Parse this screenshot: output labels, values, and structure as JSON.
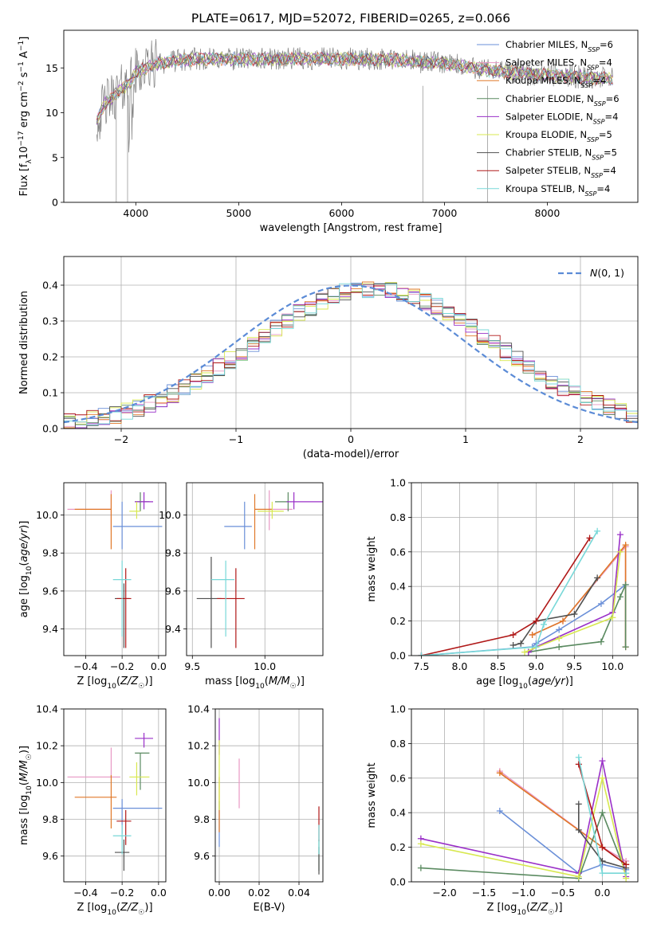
{
  "figure_title": "PLATE=0617, MJD=52072, FIBERID=0265, z=0.066",
  "colors": {
    "series": [
      "#6a8fd8",
      "#e898c4",
      "#e07828",
      "#5a8a60",
      "#9a30c8",
      "#d8e850",
      "#505050",
      "#b01818",
      "#78d8d8"
    ],
    "normal_curve": "#5b8bd6",
    "grid": "#b0b0b0",
    "spectrum": "#808080"
  },
  "chart_data": [
    {
      "id": "spectrum",
      "type": "line",
      "xlabel": "wavelength [Angstrom, rest frame]",
      "ylabel": "Flux [fλ10⁻¹⁷ erg cm⁻² s⁻¹ A⁻¹]",
      "xlim": [
        3300,
        8880
      ],
      "ylim": [
        0,
        19.2
      ],
      "xticks": [
        4000,
        5000,
        6000,
        7000,
        8000
      ],
      "yticks": [
        0,
        5,
        10,
        15
      ],
      "grid": false,
      "legend_position": "top-right",
      "legend": [
        {
          "name": "Chabrier MILES, N_SSP=6"
        },
        {
          "name": "Salpeter MILES, N_SSP=4"
        },
        {
          "name": "Kroupa MILES, N_SSP=4"
        },
        {
          "name": "Chabrier ELODIE, N_SSP=6"
        },
        {
          "name": "Salpeter ELODIE, N_SSP=4"
        },
        {
          "name": "Kroupa ELODIE, N_SSP=5"
        },
        {
          "name": "Chabrier STELIB, N_SSP=5"
        },
        {
          "name": "Salpeter STELIB, N_SSP=4"
        },
        {
          "name": "Kroupa STELIB, N_SSP=4"
        }
      ],
      "continuum": {
        "x": [
          3620,
          3700,
          3800,
          3900,
          3950,
          4000,
          4100,
          4200,
          4400,
          4600,
          5000,
          5500,
          6000,
          6500,
          7000,
          7300,
          7500,
          8000,
          8300,
          8600
        ],
        "y": [
          9,
          11,
          12,
          13,
          13.5,
          14.5,
          15,
          15.5,
          15.8,
          16,
          16,
          16,
          16,
          15.9,
          15.5,
          15,
          14.6,
          14.2,
          14,
          13.8
        ]
      },
      "data_range": [
        3620,
        8640
      ]
    },
    {
      "id": "residual-histogram",
      "type": "step",
      "xlabel": "(data-model)/error",
      "ylabel": "Normed distribution",
      "xlim": [
        -2.5,
        2.5
      ],
      "ylim": [
        0,
        0.48
      ],
      "xticks": [
        -2,
        -1,
        0,
        1,
        2
      ],
      "yticks": [
        0,
        0.1,
        0.2,
        0.3,
        0.4
      ],
      "grid": true,
      "legend": [
        {
          "name": "N(0,1)"
        }
      ],
      "bin_width": 0.1,
      "bin_start": -2.5
    },
    {
      "id": "Z-vs-age",
      "type": "errorbar",
      "xlabel": "Z [log10(Z/Z☉)]",
      "ylabel": "age  [log10(age/yr)]",
      "xlim": [
        -0.52,
        0.04
      ],
      "ylim": [
        9.26,
        10.17
      ],
      "xticks": [
        -0.4,
        -0.2,
        0.0
      ],
      "yticks": [
        9.4,
        9.6,
        9.8,
        10.0
      ],
      "grid": true,
      "points": [
        {
          "x": -0.2,
          "xerr": [
            0.05,
            0.22
          ],
          "y": 9.94,
          "yerr": [
            0.12,
            0.13
          ]
        },
        {
          "x": -0.26,
          "xerr": [
            0.24,
            0.0
          ],
          "y": 10.03,
          "yerr": [
            0.11,
            0.1
          ]
        },
        {
          "x": -0.26,
          "xerr": [
            0.2,
            0.0
          ],
          "y": 10.03,
          "yerr": [
            0.21,
            0.08
          ]
        },
        {
          "x": -0.1,
          "xerr": [
            0.03,
            0.05
          ],
          "y": 10.07,
          "yerr": [
            0.05,
            0.05
          ]
        },
        {
          "x": -0.08,
          "xerr": [
            0.05,
            0.05
          ],
          "y": 10.07,
          "yerr": [
            0.04,
            0.05
          ]
        },
        {
          "x": -0.12,
          "xerr": [
            0.04,
            0.02
          ],
          "y": 10.02,
          "yerr": [
            0.04,
            0.05
          ]
        },
        {
          "x": -0.19,
          "xerr": [
            0.05,
            0.03
          ],
          "y": 9.56,
          "yerr": [
            0.26,
            0.08
          ]
        },
        {
          "x": -0.18,
          "xerr": [
            0.05,
            0.03
          ],
          "y": 9.56,
          "yerr": [
            0.26,
            0.16
          ]
        },
        {
          "x": -0.2,
          "xerr": [
            0.05,
            0.05
          ],
          "y": 9.66,
          "yerr": [
            0.3,
            0.1
          ]
        }
      ]
    },
    {
      "id": "mass-vs-age",
      "type": "errorbar",
      "xlabel": "mass [log10(M/M☉)]",
      "ylabel": "",
      "xlim": [
        9.46,
        10.4
      ],
      "ylim": [
        9.26,
        10.17
      ],
      "xticks": [
        9.5,
        10.0
      ],
      "yticks": [
        9.4,
        9.6,
        9.8,
        10.0
      ],
      "grid": true,
      "points": [
        {
          "x": 9.86,
          "xerr": [
            0.14,
            0.05
          ],
          "y": 9.94,
          "yerr": [
            0.12,
            0.13
          ]
        },
        {
          "x": 10.03,
          "xerr": [
            0.0,
            0.16
          ],
          "y": 10.03,
          "yerr": [
            0.11,
            0.1
          ]
        },
        {
          "x": 9.93,
          "xerr": [
            0.0,
            0.12
          ],
          "y": 10.03,
          "yerr": [
            0.21,
            0.08
          ]
        },
        {
          "x": 10.16,
          "xerr": [
            0.09,
            0.0
          ],
          "y": 10.07,
          "yerr": [
            0.05,
            0.05
          ]
        },
        {
          "x": 10.2,
          "xerr": [
            0.05,
            0.2
          ],
          "y": 10.07,
          "yerr": [
            0.04,
            0.05
          ]
        },
        {
          "x": 10.05,
          "xerr": [
            0.1,
            0.08
          ],
          "y": 10.02,
          "yerr": [
            0.04,
            0.05
          ]
        },
        {
          "x": 9.63,
          "xerr": [
            0.1,
            0.07
          ],
          "y": 9.56,
          "yerr": [
            0.26,
            0.22
          ]
        },
        {
          "x": 9.8,
          "xerr": [
            0.13,
            0.06
          ],
          "y": 9.56,
          "yerr": [
            0.26,
            0.16
          ]
        },
        {
          "x": 9.73,
          "xerr": [
            0.1,
            0.06
          ],
          "y": 9.66,
          "yerr": [
            0.3,
            0.1
          ]
        }
      ]
    },
    {
      "id": "age-vs-mass-weight",
      "type": "line",
      "xlabel": "age  [log10(age/yr)]",
      "ylabel": "mass weight",
      "xlim": [
        7.37,
        10.33
      ],
      "ylim": [
        0,
        1.0
      ],
      "xticks": [
        7.5,
        8.0,
        8.5,
        9.0,
        9.5,
        10.0
      ],
      "yticks": [
        0.0,
        0.2,
        0.4,
        0.6,
        0.8,
        1.0
      ],
      "grid": true,
      "series": [
        {
          "x": [
            7.5,
            8.95,
            9.0,
            9.3,
            9.85,
            10.17
          ],
          "y": [
            0.0,
            0.05,
            0.07,
            0.15,
            0.3,
            0.41
          ]
        },
        {
          "x": [
            8.95,
            9.35,
            10.17,
            10.17
          ],
          "y": [
            0.12,
            0.2,
            0.63,
            0.05
          ]
        },
        {
          "x": [
            8.95,
            9.35,
            10.17,
            10.17
          ],
          "y": [
            0.12,
            0.2,
            0.64,
            0.05
          ]
        },
        {
          "x": [
            8.9,
            9.3,
            9.85,
            10.1,
            10.17,
            10.17
          ],
          "y": [
            0.02,
            0.05,
            0.08,
            0.34,
            0.41,
            0.05
          ]
        },
        {
          "x": [
            8.9,
            9.0,
            10.0,
            10.1
          ],
          "y": [
            0.02,
            0.05,
            0.25,
            0.7
          ]
        },
        {
          "x": [
            8.85,
            9.3,
            10.0,
            10.1
          ],
          "y": [
            0.02,
            0.1,
            0.22,
            0.6
          ]
        },
        {
          "x": [
            8.7,
            8.8,
            9.0,
            9.5,
            9.8
          ],
          "y": [
            0.06,
            0.07,
            0.2,
            0.24,
            0.45
          ]
        },
        {
          "x": [
            7.5,
            8.7,
            9.0,
            9.7
          ],
          "y": [
            0.0,
            0.12,
            0.2,
            0.68
          ]
        },
        {
          "x": [
            7.5,
            9.0,
            9.1,
            9.8
          ],
          "y": [
            0.0,
            0.05,
            0.18,
            0.72
          ]
        }
      ]
    },
    {
      "id": "Z-vs-mass",
      "type": "errorbar",
      "xlabel": "Z [log10(Z/Z☉)]",
      "ylabel": "mass [log10(M/M☉)]",
      "xlim": [
        -0.52,
        0.04
      ],
      "ylim": [
        9.46,
        10.4
      ],
      "xticks": [
        -0.4,
        -0.2,
        0.0
      ],
      "yticks": [
        9.6,
        9.8,
        10.0,
        10.2,
        10.4
      ],
      "grid": true,
      "points": [
        {
          "x": -0.2,
          "xerr": [
            0.05,
            0.22
          ],
          "y": 9.86,
          "yerr": [
            0.14,
            0.05
          ]
        },
        {
          "x": -0.26,
          "xerr": [
            0.24,
            0.05
          ],
          "y": 10.03,
          "yerr": [
            0.0,
            0.16
          ]
        },
        {
          "x": -0.26,
          "xerr": [
            0.2,
            0.03
          ],
          "y": 9.92,
          "yerr": [
            0.17,
            0.12
          ]
        },
        {
          "x": -0.1,
          "xerr": [
            0.03,
            0.05
          ],
          "y": 10.16,
          "yerr": [
            0.2,
            0.0
          ]
        },
        {
          "x": -0.08,
          "xerr": [
            0.05,
            0.05
          ],
          "y": 10.24,
          "yerr": [
            0.05,
            0.03
          ]
        },
        {
          "x": -0.12,
          "xerr": [
            0.04,
            0.07
          ],
          "y": 10.03,
          "yerr": [
            0.1,
            0.08
          ]
        },
        {
          "x": -0.19,
          "xerr": [
            0.05,
            0.03
          ],
          "y": 9.62,
          "yerr": [
            0.1,
            0.07
          ]
        },
        {
          "x": -0.18,
          "xerr": [
            0.05,
            0.03
          ],
          "y": 9.79,
          "yerr": [
            0.13,
            0.06
          ]
        },
        {
          "x": -0.2,
          "xerr": [
            0.05,
            0.05
          ],
          "y": 9.71,
          "yerr": [
            0.1,
            0.06
          ]
        }
      ]
    },
    {
      "id": "EBV-vs-mass",
      "type": "errorbar",
      "xlabel": "E(B-V)",
      "ylabel": "",
      "xlim": [
        -0.002,
        0.052
      ],
      "ylim": [
        9.46,
        10.4
      ],
      "xticks": [
        0.0,
        0.02,
        0.04
      ],
      "yticks": [
        9.6,
        9.8,
        10.0,
        10.2,
        10.4
      ],
      "grid": true,
      "points": [
        {
          "x": 0.0,
          "y": 9.85,
          "yerr": [
            0.2,
            0.05
          ]
        },
        {
          "x": 0.01,
          "y": 10.03,
          "yerr": [
            0.17,
            0.1
          ]
        },
        {
          "x": 0.0,
          "y": 9.93,
          "yerr": [
            0.2,
            0.1
          ]
        },
        {
          "x": 0.05,
          "y": 9.62,
          "yerr": [
            0.1,
            0.07
          ]
        },
        {
          "x": 0.0,
          "y": 10.25,
          "yerr": [
            0.1,
            0.1
          ]
        },
        {
          "x": 0.0,
          "y": 10.05,
          "yerr": [
            0.2,
            0.18
          ]
        },
        {
          "x": 0.05,
          "y": 9.6,
          "yerr": [
            0.1,
            0.05
          ]
        },
        {
          "x": 0.05,
          "y": 9.78,
          "yerr": [
            0.1,
            0.09
          ]
        },
        {
          "x": 0.05,
          "y": 9.71,
          "yerr": [
            0.1,
            0.06
          ]
        }
      ]
    },
    {
      "id": "Z-vs-mass-weight",
      "type": "line",
      "xlabel": "Z [log10(Z/Z☉)]",
      "ylabel": "mass weight",
      "xlim": [
        -2.42,
        0.45
      ],
      "ylim": [
        0,
        1.0
      ],
      "xticks": [
        -2.0,
        -1.5,
        -1.0,
        -0.5,
        0.0
      ],
      "yticks": [
        0.0,
        0.2,
        0.4,
        0.6,
        0.8,
        1.0
      ],
      "grid": true,
      "series": [
        {
          "x": [
            -1.3,
            -0.3,
            0.0,
            0.3
          ],
          "y": [
            0.41,
            0.05,
            0.1,
            0.07
          ]
        },
        {
          "x": [
            -1.3,
            0.0,
            0.3
          ],
          "y": [
            0.64,
            0.2,
            0.12
          ]
        },
        {
          "x": [
            -1.3,
            0.0,
            0.3
          ],
          "y": [
            0.63,
            0.2,
            0.1
          ]
        },
        {
          "x": [
            -2.3,
            -0.3,
            0.0,
            0.3
          ],
          "y": [
            0.08,
            0.02,
            0.4,
            0.05
          ]
        },
        {
          "x": [
            -2.3,
            -0.3,
            0.0,
            0.3
          ],
          "y": [
            0.25,
            0.05,
            0.7,
            0.03
          ]
        },
        {
          "x": [
            -2.3,
            -0.3,
            0.0,
            0.3
          ],
          "y": [
            0.22,
            0.03,
            0.6,
            0.02
          ]
        },
        {
          "x": [
            -0.3,
            -0.3,
            0.0,
            0.3
          ],
          "y": [
            0.45,
            0.3,
            0.12,
            0.08
          ]
        },
        {
          "x": [
            -0.3,
            0.0,
            0.3
          ],
          "y": [
            0.68,
            0.2,
            0.1
          ]
        },
        {
          "x": [
            -0.3,
            0.0,
            0.3
          ],
          "y": [
            0.72,
            0.05,
            0.05
          ]
        }
      ]
    }
  ]
}
